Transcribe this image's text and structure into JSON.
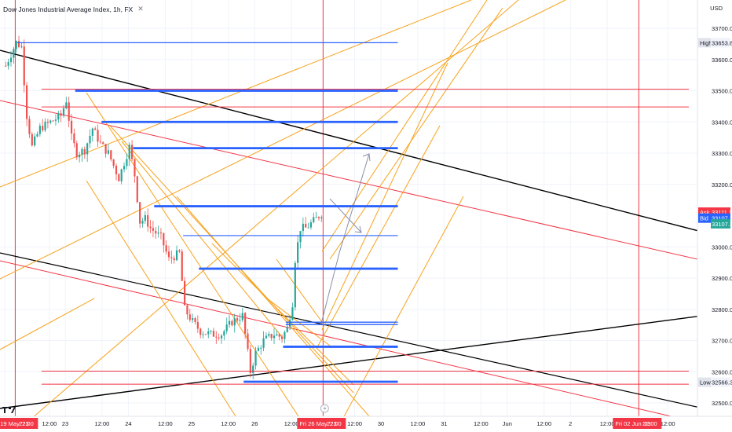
{
  "header": {
    "title": "Dow Jones Industrial Average Index, 1h, FX",
    "close_glyph": "✕",
    "currency": "USD"
  },
  "price_axis": {
    "min": 32450,
    "max": 33850,
    "ticks": [
      {
        "label": "33700.00",
        "value": 33700
      },
      {
        "label": "33600.00",
        "value": 33600
      },
      {
        "label": "33500.00",
        "value": 33500
      },
      {
        "label": "33400.00",
        "value": 33400
      },
      {
        "label": "33300.00",
        "value": 33300
      },
      {
        "label": "33200.00",
        "value": 33200
      },
      {
        "label": "33000.00",
        "value": 33000
      },
      {
        "label": "32900.00",
        "value": 32900
      },
      {
        "label": "32800.00",
        "value": 32800
      },
      {
        "label": "32700.00",
        "value": 32700
      },
      {
        "label": "32600.00",
        "value": 32600
      },
      {
        "label": "32500.00",
        "value": 32500
      }
    ],
    "badges": [
      {
        "tag": "High",
        "label": "33653.80",
        "value": 33653.8,
        "kind": "light"
      },
      {
        "tag": "Ask",
        "label": "33111.13",
        "value": 33111.13,
        "kind": "red"
      },
      {
        "tag": "Bid",
        "label": "33107.35",
        "value": 33092,
        "kind": "blue"
      },
      {
        "tag": "",
        "label": "33107.35",
        "value": 33074,
        "kind": "green"
      },
      {
        "tag": "Low",
        "label": "32566.30",
        "value": 32566.3,
        "kind": "light"
      }
    ]
  },
  "time_axis": {
    "ticks": [
      {
        "label": "12:00",
        "t": 0
      },
      {
        "label": "22:00",
        "t": 4
      },
      {
        "label": "12:00",
        "t": 17
      },
      {
        "label": "23",
        "t": 23
      },
      {
        "label": "12:00",
        "t": 37
      },
      {
        "label": "24",
        "t": 47
      },
      {
        "label": "12:00",
        "t": 61
      },
      {
        "label": "25",
        "t": 71
      },
      {
        "label": "12:00",
        "t": 85
      },
      {
        "label": "26",
        "t": 95
      },
      {
        "label": "12:00",
        "t": 109
      },
      {
        "label": "22:00",
        "t": 121
      },
      {
        "label": "12:00",
        "t": 133
      },
      {
        "label": "30",
        "t": 143
      },
      {
        "label": "12:00",
        "t": 157
      },
      {
        "label": "31",
        "t": 167
      },
      {
        "label": "12:00",
        "t": 181
      },
      {
        "label": "Jun",
        "t": 191
      },
      {
        "label": "12:00",
        "t": 205
      },
      {
        "label": "2",
        "t": 215
      },
      {
        "label": "12:00",
        "t": 229
      },
      {
        "label": "22:00",
        "t": 241
      },
      {
        "label": "12:00",
        "t": 252
      }
    ],
    "highlights": [
      {
        "label": "Fri 19 May '23",
        "t": 4
      },
      {
        "label": "Fri 26 May '23",
        "t": 121
      },
      {
        "label": "Fri 02 Jun '23",
        "t": 241
      }
    ]
  },
  "colors": {
    "up": "#26a69a",
    "down": "#ef5350",
    "blue_level": "#2962ff",
    "red_line": "#f23645",
    "orange": "#f7a21b",
    "black": "#000000",
    "grid": "#f0f3fa",
    "projection": "#8a8fa8"
  },
  "chart_data": {
    "type": "candlestick",
    "symbol": "Dow Jones Industrial Average Index",
    "interval": "1h",
    "high": 33653.8,
    "low": 32566.3,
    "ask": 33111.13,
    "bid": 33107.35,
    "path_points": [
      [
        0,
        33580
      ],
      [
        4,
        33655
      ],
      [
        6,
        33640
      ],
      [
        8,
        33420
      ],
      [
        10,
        33320
      ],
      [
        13,
        33380
      ],
      [
        17,
        33400
      ],
      [
        21,
        33420
      ],
      [
        23,
        33470
      ],
      [
        25,
        33350
      ],
      [
        27,
        33300
      ],
      [
        30,
        33310
      ],
      [
        33,
        33380
      ],
      [
        36,
        33330
      ],
      [
        39,
        33300
      ],
      [
        43,
        33220
      ],
      [
        47,
        33320
      ],
      [
        49,
        33230
      ],
      [
        51,
        33080
      ],
      [
        53,
        33090
      ],
      [
        55,
        33060
      ],
      [
        59,
        33030
      ],
      [
        62,
        32960
      ],
      [
        66,
        32980
      ],
      [
        68,
        32800
      ],
      [
        71,
        32760
      ],
      [
        74,
        32730
      ],
      [
        78,
        32720
      ],
      [
        82,
        32720
      ],
      [
        86,
        32760
      ],
      [
        90,
        32780
      ],
      [
        93,
        32600
      ],
      [
        95,
        32660
      ],
      [
        98,
        32700
      ],
      [
        102,
        32720
      ],
      [
        105,
        32710
      ],
      [
        107,
        32740
      ],
      [
        109,
        32820
      ],
      [
        110,
        32960
      ],
      [
        112,
        33060
      ],
      [
        114,
        33060
      ],
      [
        118,
        33090
      ],
      [
        120,
        33107
      ]
    ],
    "levels_blue": [
      {
        "price": 33653.8,
        "t1": 6,
        "t2": 133,
        "weight": "thin"
      },
      {
        "price": 33500,
        "t1": 28,
        "t2": 133,
        "weight": "thick"
      },
      {
        "price": 33400,
        "t1": 38,
        "t2": 133,
        "weight": "thick"
      },
      {
        "price": 33316,
        "t1": 50,
        "t2": 133,
        "weight": "thick"
      },
      {
        "price": 33130,
        "t1": 58,
        "t2": 133,
        "weight": "thick"
      },
      {
        "price": 33036,
        "t1": 69,
        "t2": 133,
        "weight": "thin"
      },
      {
        "price": 32930,
        "t1": 75,
        "t2": 133,
        "weight": "thick"
      },
      {
        "price": 32755,
        "t1": 108,
        "t2": 133,
        "weight": "double"
      },
      {
        "price": 32680,
        "t1": 107,
        "t2": 133,
        "weight": "thick"
      },
      {
        "price": 32568,
        "t1": 92,
        "t2": 133,
        "weight": "thick"
      }
    ],
    "levels_red_h": [
      {
        "price": 33505,
        "t1": 14,
        "t2": 260
      },
      {
        "price": 33448,
        "t1": 14,
        "t2": 260
      },
      {
        "price": 32602,
        "t1": 14,
        "t2": 260
      },
      {
        "price": 32560,
        "t1": 14,
        "t2": 260
      }
    ]
  }
}
